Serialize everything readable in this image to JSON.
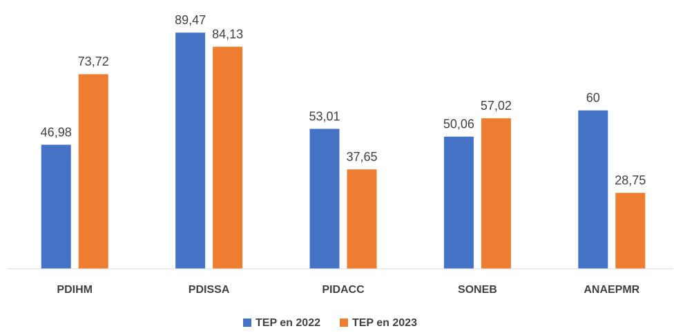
{
  "chart_data": {
    "type": "bar",
    "categories": [
      "PDIHM",
      "PDISSA",
      "PIDACC",
      "SONEB",
      "ANAEPMR"
    ],
    "series": [
      {
        "name": "TEP en 2022",
        "color": "#4472c4",
        "values": [
          46.98,
          89.47,
          53.01,
          50.06,
          60
        ],
        "value_labels": [
          "46,98",
          "89,47",
          "53,01",
          "50,06",
          "60"
        ]
      },
      {
        "name": "TEP en 2023",
        "color": "#ed7d31",
        "values": [
          73.72,
          84.13,
          37.65,
          57.02,
          28.75
        ],
        "value_labels": [
          "73,72",
          "84,13",
          "37,65",
          "57,02",
          "28,75"
        ]
      }
    ],
    "ylim": [
      0,
      100
    ],
    "legend": "bottom"
  }
}
